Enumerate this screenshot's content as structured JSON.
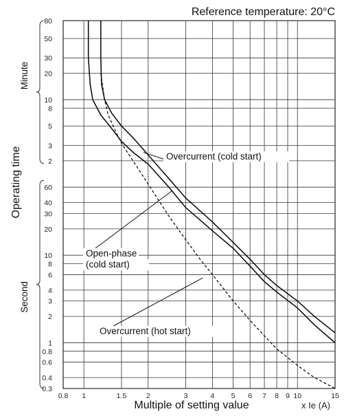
{
  "chart_data": {
    "type": "line",
    "title": "Reference temperature: 20°C",
    "xlabel": "Multiple of setting value",
    "xunit": "x Ie (A)",
    "ylabel": "Operating time",
    "y_groups": [
      "Minute",
      "Second"
    ],
    "x_scale": "log",
    "x_range": [
      0.8,
      15
    ],
    "x_ticks": [
      "0.8",
      "1",
      "1.5",
      "2",
      "3",
      "4",
      "5",
      "6",
      "7",
      "8",
      "9",
      "10",
      "15"
    ],
    "minute_ticks": [
      "80",
      "50",
      "30",
      "20",
      "10",
      "8",
      "5",
      "3",
      "2"
    ],
    "second_ticks": [
      "60",
      "40",
      "30",
      "20",
      "10",
      "8",
      "6",
      "4",
      "3",
      "2",
      "1",
      "0.8",
      "0.6",
      "0.4",
      "0.3"
    ],
    "grid": true,
    "series": [
      {
        "name": "Overcurrent (cold start)",
        "style": "solid",
        "points": [
          [
            1.2,
            4800
          ],
          [
            1.2,
            1800
          ],
          [
            1.21,
            900
          ],
          [
            1.25,
            600
          ],
          [
            1.35,
            420
          ],
          [
            1.5,
            300
          ],
          [
            1.7,
            220
          ],
          [
            2.0,
            140
          ],
          [
            2.5,
            75
          ],
          [
            3,
            45
          ],
          [
            4,
            24
          ],
          [
            5,
            14
          ],
          [
            6,
            9
          ],
          [
            7,
            6
          ],
          [
            8,
            4.5
          ],
          [
            10,
            3
          ],
          [
            12,
            2
          ],
          [
            15,
            1.3
          ]
        ]
      },
      {
        "name": "Open-phase (cold start)",
        "style": "solid",
        "points": [
          [
            1.05,
            4800
          ],
          [
            1.05,
            1800
          ],
          [
            1.07,
            900
          ],
          [
            1.1,
            600
          ],
          [
            1.2,
            400
          ],
          [
            1.35,
            280
          ],
          [
            1.5,
            200
          ],
          [
            1.7,
            150
          ],
          [
            2.0,
            110
          ],
          [
            2.5,
            60
          ],
          [
            3,
            35
          ],
          [
            4,
            19
          ],
          [
            5,
            12
          ],
          [
            6,
            7.5
          ],
          [
            7,
            5
          ],
          [
            8,
            3.8
          ],
          [
            10,
            2.5
          ],
          [
            12,
            1.6
          ],
          [
            15,
            1.0
          ]
        ]
      },
      {
        "name": "Overcurrent (hot start)",
        "style": "dashed",
        "points": [
          [
            1.2,
            1200
          ],
          [
            1.25,
            600
          ],
          [
            1.3,
            400
          ],
          [
            1.4,
            270
          ],
          [
            1.5,
            190
          ],
          [
            1.7,
            120
          ],
          [
            2.0,
            65
          ],
          [
            2.5,
            28
          ],
          [
            3,
            15
          ],
          [
            3.5,
            9
          ],
          [
            4,
            6
          ],
          [
            5,
            3
          ],
          [
            6,
            1.8
          ],
          [
            7,
            1.2
          ],
          [
            8,
            0.85
          ],
          [
            10,
            0.55
          ],
          [
            12,
            0.4
          ],
          [
            15,
            0.3
          ]
        ]
      }
    ]
  }
}
